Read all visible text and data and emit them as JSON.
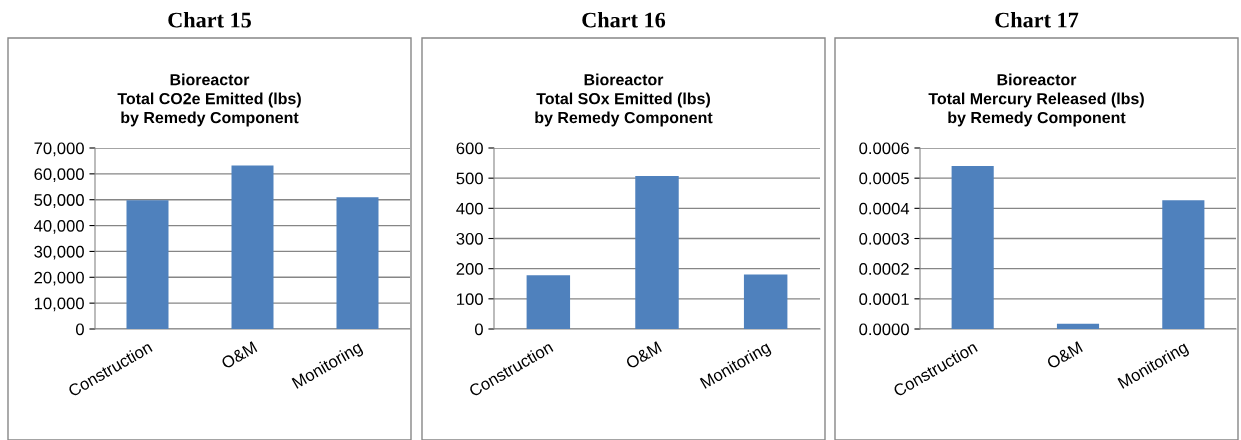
{
  "chart_data": [
    {
      "type": "bar",
      "title": "Chart 15",
      "subtitle": "Bioreactor\nTotal CO2e Emitted (lbs)\nby Remedy Component",
      "categories": [
        "Construction",
        "O&M",
        "Monitoring"
      ],
      "values": [
        49800,
        63200,
        51000
      ],
      "color": "#4f81bd",
      "ylim": [
        0,
        70000
      ],
      "yticks": [
        {
          "value": 0,
          "label": "0"
        },
        {
          "value": 10000,
          "label": "10,000"
        },
        {
          "value": 20000,
          "label": "20,000"
        },
        {
          "value": 30000,
          "label": "30,000"
        },
        {
          "value": 40000,
          "label": "40,000"
        },
        {
          "value": 50000,
          "label": "50,000"
        },
        {
          "value": 60000,
          "label": "60,000"
        },
        {
          "value": 70000,
          "label": "70,000"
        }
      ],
      "grid": "y",
      "legend": false
    },
    {
      "type": "bar",
      "title": "Chart 16",
      "subtitle": "Bioreactor\nTotal SOx Emitted (lbs)\nby Remedy Component",
      "categories": [
        "Construction",
        "O&M",
        "Monitoring"
      ],
      "values": [
        178,
        507,
        181
      ],
      "color": "#4f81bd",
      "ylim": [
        0,
        600
      ],
      "yticks": [
        0,
        100,
        200,
        300,
        400,
        500,
        600
      ],
      "grid": "y",
      "legend": false
    },
    {
      "type": "bar",
      "title": "Chart 17",
      "subtitle": "Bioreactor\nTotal Mercury Released (lbs)\nby Remedy Component",
      "categories": [
        "Construction",
        "O&M",
        "Monitoring"
      ],
      "values": [
        0.00054,
        1.7e-05,
        0.000427
      ],
      "color": "#4f81bd",
      "ylim": [
        0,
        0.0006
      ],
      "yticks": [
        {
          "value": 0,
          "label": "0.0000"
        },
        {
          "value": 0.0001,
          "label": "0.0001"
        },
        {
          "value": 0.0002,
          "label": "0.0002"
        },
        {
          "value": 0.0003,
          "label": "0.0003"
        },
        {
          "value": 0.0004,
          "label": "0.0004"
        },
        {
          "value": 0.0005,
          "label": "0.0005"
        },
        {
          "value": 0.0006,
          "label": "0.0006"
        }
      ],
      "grid": "y",
      "legend": false
    }
  ]
}
